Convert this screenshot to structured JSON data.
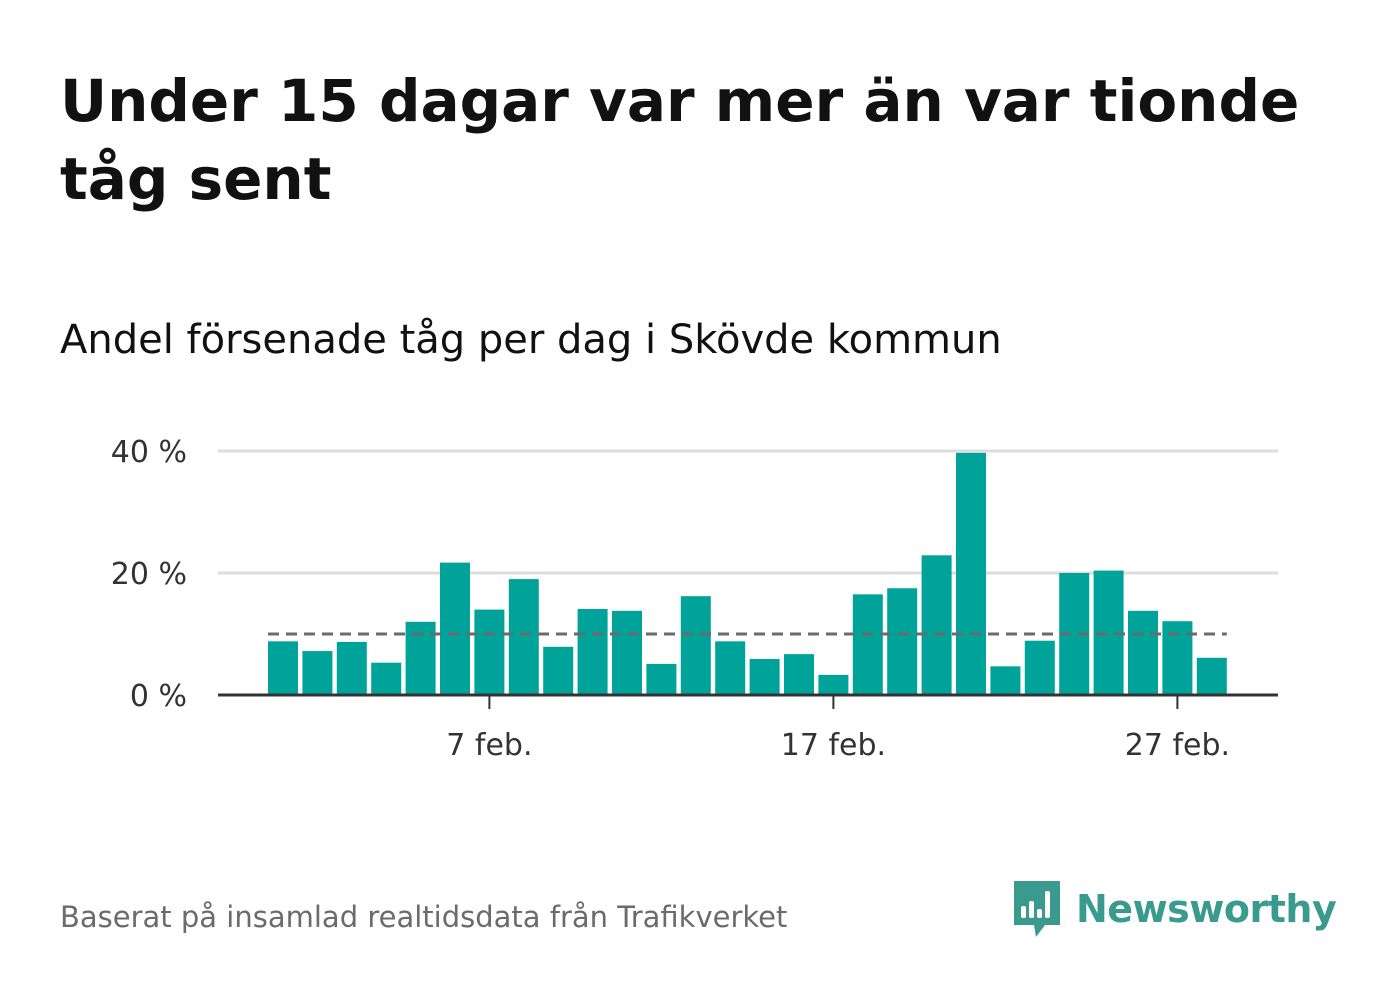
{
  "title": "Under 15 dagar var mer än var tionde tåg sent",
  "subtitle": "Andel försenade tåg per dag i Skövde kommun",
  "source": "Baserat på insamlad realtidsdata från Trafikverket",
  "brand": {
    "name": "Newsworthy",
    "icon": "newsworthy-logo-icon",
    "color": "#3b9a8e"
  },
  "colors": {
    "bar": "#00a39a",
    "reference": "#6b6b6b",
    "grid": "#dddddd",
    "axis": "#333333"
  },
  "chart_data": {
    "type": "bar",
    "x_tick_labels": [
      "7 feb.",
      "17 feb.",
      "27 feb."
    ],
    "x_tick_days": [
      7,
      17,
      27
    ],
    "y_tick_labels": [
      "0 %",
      "20 %",
      "40 %"
    ],
    "y_ticks": [
      0,
      20,
      40
    ],
    "ylim": [
      0,
      40
    ],
    "grid": true,
    "x": [
      1,
      2,
      3,
      4,
      5,
      6,
      7,
      8,
      9,
      10,
      11,
      12,
      13,
      14,
      15,
      16,
      17,
      18,
      19,
      20,
      21,
      22,
      23,
      24,
      25,
      26,
      27,
      28
    ],
    "values": [
      8.8,
      7.2,
      8.7,
      5.3,
      12.0,
      21.7,
      14.0,
      19.0,
      7.9,
      14.1,
      13.8,
      5.1,
      16.2,
      8.8,
      5.9,
      6.7,
      3.3,
      16.5,
      17.5,
      22.9,
      39.7,
      4.7,
      8.9,
      20.0,
      20.4,
      13.8,
      12.1,
      6.1
    ],
    "reference_line": 10
  }
}
